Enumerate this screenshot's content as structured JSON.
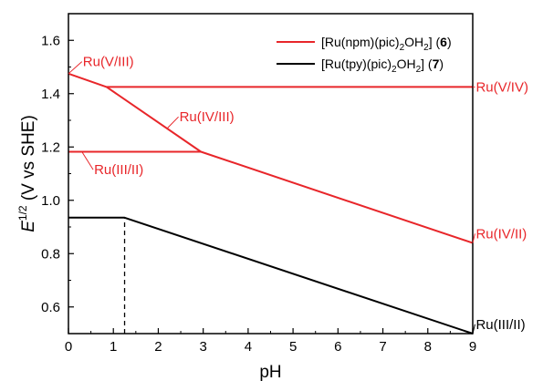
{
  "chart_data": {
    "type": "line",
    "xlabel": "pH",
    "ylabel_main": "E",
    "ylabel_sup": "1/2",
    "ylabel_rest": " (V vs SHE)",
    "xlim": [
      0,
      9
    ],
    "ylim": [
      0.5,
      1.7
    ],
    "xticks": [
      0,
      1,
      2,
      3,
      4,
      5,
      6,
      7,
      8,
      9
    ],
    "yticks": [
      0.6,
      0.8,
      1.0,
      1.2,
      1.4,
      1.6
    ],
    "ytick_labels": [
      "0.6",
      "0.8",
      "1.0",
      "1.2",
      "1.4",
      "1.6"
    ],
    "grid": false,
    "legend_position": "top-right",
    "colors": {
      "red": "#e8262a",
      "black": "#000000"
    },
    "series": [
      {
        "key": "npm",
        "legend": {
          "p1": "[Ru(npm)(pic)",
          "s1": "2",
          "p2": "OH",
          "s2": "2",
          "p3": "] (",
          "bold": "6",
          "p4": ")"
        },
        "color": "#e8262a",
        "segments": [
          [
            [
              0,
              1.475
            ],
            [
              0.85,
              1.425
            ],
            [
              2.95,
              1.182
            ],
            [
              9,
              0.84
            ]
          ],
          [
            [
              0.85,
              1.425
            ],
            [
              9,
              1.425
            ]
          ],
          [
            [
              0,
              1.182
            ],
            [
              2.95,
              1.182
            ]
          ]
        ]
      },
      {
        "key": "tpy",
        "legend": {
          "p1": "[Ru(tpy)(pic)",
          "s1": "2",
          "p2": "OH",
          "s2": "2",
          "p3": "] (",
          "bold": "7",
          "p4": ")"
        },
        "color": "#000000",
        "segments": [
          [
            [
              0,
              0.935
            ],
            [
              1.25,
              0.935
            ],
            [
              9,
              0.5
            ]
          ]
        ],
        "dashed_vertical": {
          "x": 1.25,
          "y_from": 0.5,
          "y_to": 0.935
        }
      }
    ],
    "annotations": [
      {
        "text": "Ru(V/III)",
        "series": "npm",
        "point": [
          0,
          1.475
        ],
        "label_at": [
          0.3,
          1.52
        ]
      },
      {
        "text": "Ru(IV/III)",
        "series": "npm",
        "point": [
          2.2,
          1.27
        ],
        "label_at": [
          2.45,
          1.313
        ]
      },
      {
        "text": "Ru(III/II)",
        "series": "npm",
        "point": [
          0.3,
          1.182
        ],
        "label_at": [
          0.55,
          1.115
        ]
      },
      {
        "text": "Ru(V/IV)",
        "series": "npm",
        "point": [
          9,
          1.425
        ],
        "label_at": [
          9.05,
          1.425
        ]
      },
      {
        "text": "Ru(IV/II)",
        "series": "npm",
        "point": [
          9,
          0.84
        ],
        "label_at": [
          9.05,
          0.875
        ]
      },
      {
        "text": "Ru(III/II)",
        "series": "tpy",
        "point": [
          9,
          0.5
        ],
        "label_at": [
          9.05,
          0.535
        ]
      }
    ]
  }
}
